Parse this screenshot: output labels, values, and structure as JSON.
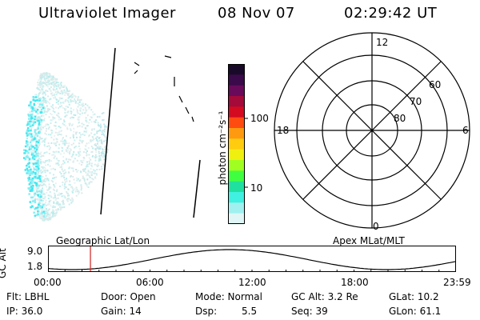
{
  "header": {
    "instrument": "Ultraviolet Imager",
    "date": "08 Nov 07",
    "time": "02:29:42 UT"
  },
  "colorbar": {
    "unit_label": "photon cm⁻²s⁻¹",
    "tick_100": "100",
    "tick_10": "10",
    "colors": [
      "#1a0a2a",
      "#3b0a4a",
      "#6a0a5a",
      "#a40a3a",
      "#d40a20",
      "#ff4a10",
      "#ff9a10",
      "#ffcc10",
      "#f0f010",
      "#a0ff20",
      "#40ff40",
      "#20e0a0",
      "#40f0e0",
      "#a0f0f0",
      "#e0f6f6"
    ]
  },
  "polar": {
    "mlt_top": "12",
    "mlt_bottom": "0",
    "mlt_left": "18",
    "mlt_right": "6",
    "lat_60": "60",
    "lat_70": "70",
    "lat_80": "80"
  },
  "orbit": {
    "ylabel": "GC Alt",
    "y_top": "9.0",
    "y_bottom": "1.8",
    "left_label": "Geographic Lat/Lon",
    "right_label": "Apex MLat/MLT",
    "x_ticks": [
      "00:00",
      "06:00",
      "12:00",
      "18:00",
      "23:59"
    ],
    "current_fraction": 0.104
  },
  "status": {
    "flt": "Flt: LBHL",
    "door": "Door: Open",
    "mode": "Mode: Normal",
    "gcalt": "GC Alt: 3.2 Re",
    "glat": "GLat: 10.2",
    "ip": "IP: 36.0",
    "gain": "Gain: 14",
    "dsp_label": "Dsp:",
    "dsp_value": "5.5",
    "seq": "Seq: 39",
    "glon": "GLon: 61.1"
  }
}
